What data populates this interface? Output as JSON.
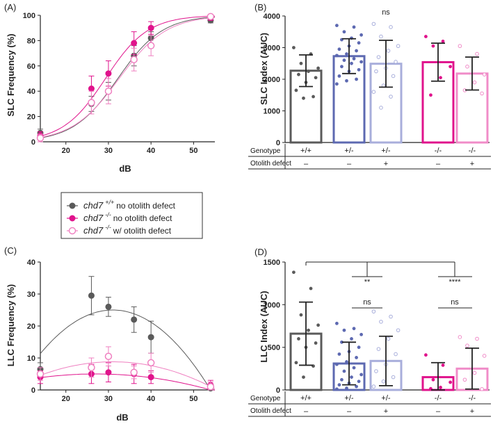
{
  "colors": {
    "wt": "#5a5a5a",
    "wt_bar": "#5a5a5a",
    "mut": "#e0138c",
    "mut_light": "#ef7fc0",
    "het": "#5d69b1",
    "het_light": "#a8aedb",
    "hom_light": "#f08cc8"
  },
  "legend": {
    "items": [
      {
        "gene": "chd7",
        "sup": "+/+",
        "label": "no otolith defect",
        "style": "filled",
        "color": "#5a5a5a"
      },
      {
        "gene": "chd7",
        "sup": "-/-",
        "label": "no otolith defect",
        "style": "filled",
        "color": "#e0138c"
      },
      {
        "gene": "chd7",
        "sup": "-/-",
        "label": "w/ otolith defect",
        "style": "open",
        "color": "#ef7fc0"
      }
    ]
  },
  "chart_data": [
    {
      "panel": "(A)",
      "type": "line",
      "xlabel": "dB",
      "ylabel": "SLC Frequency (%)",
      "xlim": [
        14,
        55
      ],
      "ylim": [
        0,
        100
      ],
      "xticks": [
        20,
        30,
        40,
        50
      ],
      "yticks": [
        0,
        20,
        40,
        60,
        80,
        100
      ],
      "series": [
        {
          "key": "wt",
          "x": [
            14,
            26,
            30,
            36,
            40,
            54
          ],
          "y": [
            7,
            30,
            40,
            68,
            82,
            96
          ],
          "err": [
            3,
            6,
            7,
            8,
            5,
            2
          ],
          "marker": "filled",
          "color": "#5a5a5a",
          "fit": {
            "x0": 32.2,
            "k": 0.19
          }
        },
        {
          "key": "hom_no",
          "x": [
            14,
            26,
            30,
            36,
            40,
            54
          ],
          "y": [
            5,
            42,
            54,
            78,
            90,
            98
          ],
          "err": [
            3,
            10,
            10,
            9,
            5,
            2
          ],
          "marker": "filled",
          "color": "#e0138c",
          "fit": {
            "x0": 29.3,
            "k": 0.2
          }
        },
        {
          "key": "hom_def",
          "x": [
            14,
            26,
            30,
            36,
            40,
            54
          ],
          "y": [
            3,
            31,
            40,
            65,
            76,
            99
          ],
          "err": [
            3,
            9,
            10,
            9,
            8,
            2
          ],
          "marker": "open",
          "color": "#ef7fc0",
          "fit": {
            "x0": 32.5,
            "k": 0.18
          }
        }
      ]
    },
    {
      "panel": "(B)",
      "type": "bar",
      "ylabel": "SLC Index (AUC)",
      "ylim": [
        0,
        4000
      ],
      "yticks": [
        0,
        1000,
        2000,
        3000,
        4000
      ],
      "categories": [
        "+/+",
        "+/-",
        "+/-",
        "-/-",
        "-/-"
      ],
      "otolith_defect": [
        "–",
        "–",
        "+",
        "–",
        "+"
      ],
      "row_labels": [
        "Genotype",
        "Otolith defect"
      ],
      "values": [
        2270,
        2730,
        2490,
        2540,
        2180
      ],
      "err": [
        500,
        550,
        740,
        600,
        520
      ],
      "bar_colors": [
        "#5a5a5a",
        "#5d69b1",
        "#a8aedb",
        "#e0138c",
        "#f08cc8"
      ],
      "points": [
        [
          3000,
          2800,
          2500,
          2350,
          2250,
          2150,
          2050,
          1900,
          1650,
          1450,
          1400
        ],
        [
          3700,
          3650,
          3500,
          3400,
          3300,
          3250,
          3150,
          3050,
          2950,
          2900,
          2800,
          2750,
          2650,
          2600,
          2550,
          2500,
          2400,
          2300,
          2250,
          2100,
          2000,
          1950,
          1850
        ],
        [
          3750,
          3650,
          3350,
          3050,
          2900,
          2700,
          2550,
          2350,
          2250,
          2100,
          1800,
          1600,
          1450,
          1100
        ],
        [
          3350,
          3200,
          3050,
          2400,
          2050,
          1500
        ],
        [
          3050,
          2800,
          2400,
          2150,
          1900,
          1650,
          1550
        ]
      ],
      "annotations": [
        {
          "text": "ns",
          "bar": 2
        }
      ]
    },
    {
      "panel": "(C)",
      "type": "line",
      "xlabel": "dB",
      "ylabel": "LLC Frequency (%)",
      "xlim": [
        14,
        55
      ],
      "ylim": [
        0,
        40
      ],
      "xticks": [
        20,
        30,
        40,
        50
      ],
      "yticks": [
        0,
        10,
        20,
        30,
        40
      ],
      "series": [
        {
          "key": "wt",
          "x": [
            14,
            26,
            30,
            36,
            40,
            54
          ],
          "y": [
            6.5,
            29.5,
            26,
            22,
            16.5,
            0.5
          ],
          "err": [
            2,
            6,
            3,
            4,
            5,
            1
          ],
          "marker": "filled",
          "color": "#5a5a5a",
          "fit": {
            "peak": 25,
            "x0": 31,
            "half": 23
          }
        },
        {
          "key": "hom_no",
          "x": [
            14,
            26,
            30,
            36,
            40,
            54
          ],
          "y": [
            4,
            5,
            5.5,
            5,
            4,
            1.5
          ],
          "err": [
            2,
            3,
            3,
            3,
            2,
            1.5
          ],
          "marker": "filled",
          "color": "#e0138c",
          "fit": {
            "peak": 5,
            "x0": 27,
            "half": 27
          }
        },
        {
          "key": "hom_def",
          "x": [
            14,
            26,
            30,
            36,
            40,
            54
          ],
          "y": [
            5,
            7,
            10.5,
            5.5,
            8.5,
            1
          ],
          "err": [
            2,
            3,
            3,
            2,
            3,
            1.5
          ],
          "marker": "open",
          "color": "#ef7fc0",
          "fit": {
            "peak": 8.8,
            "x0": 31,
            "half": 24.5
          }
        }
      ]
    },
    {
      "panel": "(D)",
      "type": "bar",
      "ylabel": "LLC Index (AUC)",
      "ylim": [
        0,
        1500
      ],
      "yticks": [
        0,
        500,
        1000,
        1500
      ],
      "categories": [
        "+/+",
        "+/-",
        "+/-",
        "-/-",
        "-/-"
      ],
      "otolith_defect": [
        "–",
        "–",
        "+",
        "–",
        "+"
      ],
      "row_labels": [
        "Genotype",
        "Otolith defect"
      ],
      "values": [
        660,
        310,
        340,
        150,
        250
      ],
      "err": [
        370,
        250,
        290,
        170,
        240
      ],
      "bar_colors": [
        "#5a5a5a",
        "#5d69b1",
        "#a8aedb",
        "#e0138c",
        "#f08cc8"
      ],
      "points": [
        [
          1380,
          1190,
          880,
          760,
          700,
          600,
          550,
          500,
          320,
          280,
          150
        ],
        [
          780,
          720,
          700,
          650,
          600,
          560,
          500,
          450,
          420,
          380,
          330,
          300,
          260,
          220,
          180,
          150,
          120,
          100,
          80,
          60,
          40,
          20,
          10
        ],
        [
          920,
          860,
          800,
          700,
          600,
          480,
          420,
          300,
          220,
          150,
          100,
          40
        ],
        [
          410,
          290,
          120,
          90,
          30,
          15
        ],
        [
          620,
          600,
          520,
          400,
          200,
          120,
          10
        ]
      ],
      "annotations": [
        {
          "text": "**",
          "bars": [
            1,
            2
          ],
          "level": "upper"
        },
        {
          "text": "****",
          "bars": [
            3,
            4
          ],
          "level": "upper"
        },
        {
          "text": "ns",
          "bars": [
            1,
            2
          ],
          "level": "lower"
        },
        {
          "text": "ns",
          "bars": [
            3,
            4
          ],
          "level": "lower"
        }
      ]
    }
  ]
}
